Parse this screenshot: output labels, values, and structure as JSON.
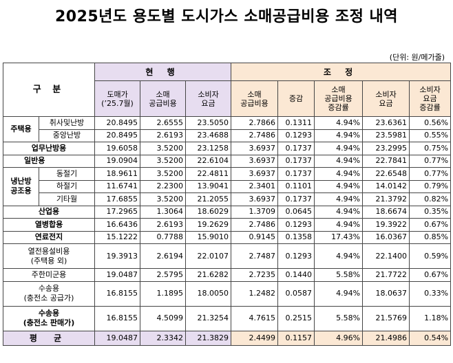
{
  "title": "2025년도 용도별 도시가스 소매공급비용 조정 내역",
  "unit": "(단위: 원/메가줄)",
  "headers": {
    "category": "구 분",
    "current": "현 행",
    "adjust": "조 정",
    "cur_cols": [
      "도매가\n(’25.7월)",
      "소매\n공급비용",
      "소비자\n요금"
    ],
    "adj_cols": [
      "소매\n공급비용",
      "증감",
      "소매\n공급비용\n증감률",
      "소비자\n요금",
      "소비자\n요금\n증감률"
    ]
  },
  "groups": {
    "residential": "주택용",
    "cooling": "냉난방\n공조용"
  },
  "rows": [
    {
      "label": "취사및난방",
      "v": [
        "20.8495",
        "2.6555",
        "23.5050",
        "2.7866",
        "0.1311",
        "4.94%",
        "23.6361",
        "0.56%"
      ]
    },
    {
      "label": "중앙난방",
      "v": [
        "20.8495",
        "2.6193",
        "23.4688",
        "2.7486",
        "0.1293",
        "4.94%",
        "23.5981",
        "0.55%"
      ]
    },
    {
      "label": "업무난방용",
      "v": [
        "19.6058",
        "3.5200",
        "23.1258",
        "3.6937",
        "0.1737",
        "4.94%",
        "23.2995",
        "0.75%"
      ]
    },
    {
      "label": "일반용",
      "v": [
        "19.0904",
        "3.5200",
        "22.6104",
        "3.6937",
        "0.1737",
        "4.94%",
        "22.7841",
        "0.77%"
      ]
    },
    {
      "label": "동절기",
      "v": [
        "18.9611",
        "3.5200",
        "22.4811",
        "3.6937",
        "0.1737",
        "4.94%",
        "22.6548",
        "0.77%"
      ]
    },
    {
      "label": "하절기",
      "v": [
        "11.6741",
        "2.2300",
        "13.9041",
        "2.3401",
        "0.1101",
        "4.94%",
        "14.0142",
        "0.79%"
      ]
    },
    {
      "label": "기타월",
      "v": [
        "17.6855",
        "3.5200",
        "21.2055",
        "3.6937",
        "0.1737",
        "4.94%",
        "21.3792",
        "0.82%"
      ]
    },
    {
      "label": "산업용",
      "v": [
        "17.2965",
        "1.3064",
        "18.6029",
        "1.3709",
        "0.0645",
        "4.94%",
        "18.6674",
        "0.35%"
      ]
    },
    {
      "label": "열병합용",
      "v": [
        "16.6436",
        "2.6193",
        "19.2629",
        "2.7486",
        "0.1293",
        "4.94%",
        "19.3922",
        "0.67%"
      ]
    },
    {
      "label": "연료전지",
      "v": [
        "15.1222",
        "0.7788",
        "15.9010",
        "0.9145",
        "0.1358",
        "17.43%",
        "16.0367",
        "0.85%"
      ]
    },
    {
      "label": "열전용설비용\n(주택용 외)",
      "v": [
        "19.3913",
        "2.6194",
        "22.0107",
        "2.7487",
        "0.1293",
        "4.94%",
        "22.1400",
        "0.59%"
      ]
    },
    {
      "label": "주한미군용",
      "v": [
        "19.0487",
        "2.5795",
        "21.6282",
        "2.7235",
        "0.1440",
        "5.58%",
        "21.7722",
        "0.67%"
      ]
    },
    {
      "label": "수송용\n(충전소 공급가)",
      "v": [
        "16.8155",
        "1.1895",
        "18.0050",
        "1.2482",
        "0.0587",
        "4.94%",
        "18.0637",
        "0.33%"
      ]
    },
    {
      "label": "수송용\n(충전소 판매가)",
      "v": [
        "16.8155",
        "4.5099",
        "21.3254",
        "4.7615",
        "0.2515",
        "5.58%",
        "21.5769",
        "1.18%"
      ]
    }
  ],
  "average": {
    "label": "평 균",
    "v": [
      "19.0487",
      "2.3342",
      "21.3829",
      "2.4499",
      "0.1157",
      "4.96%",
      "21.4986",
      "0.54%"
    ]
  }
}
